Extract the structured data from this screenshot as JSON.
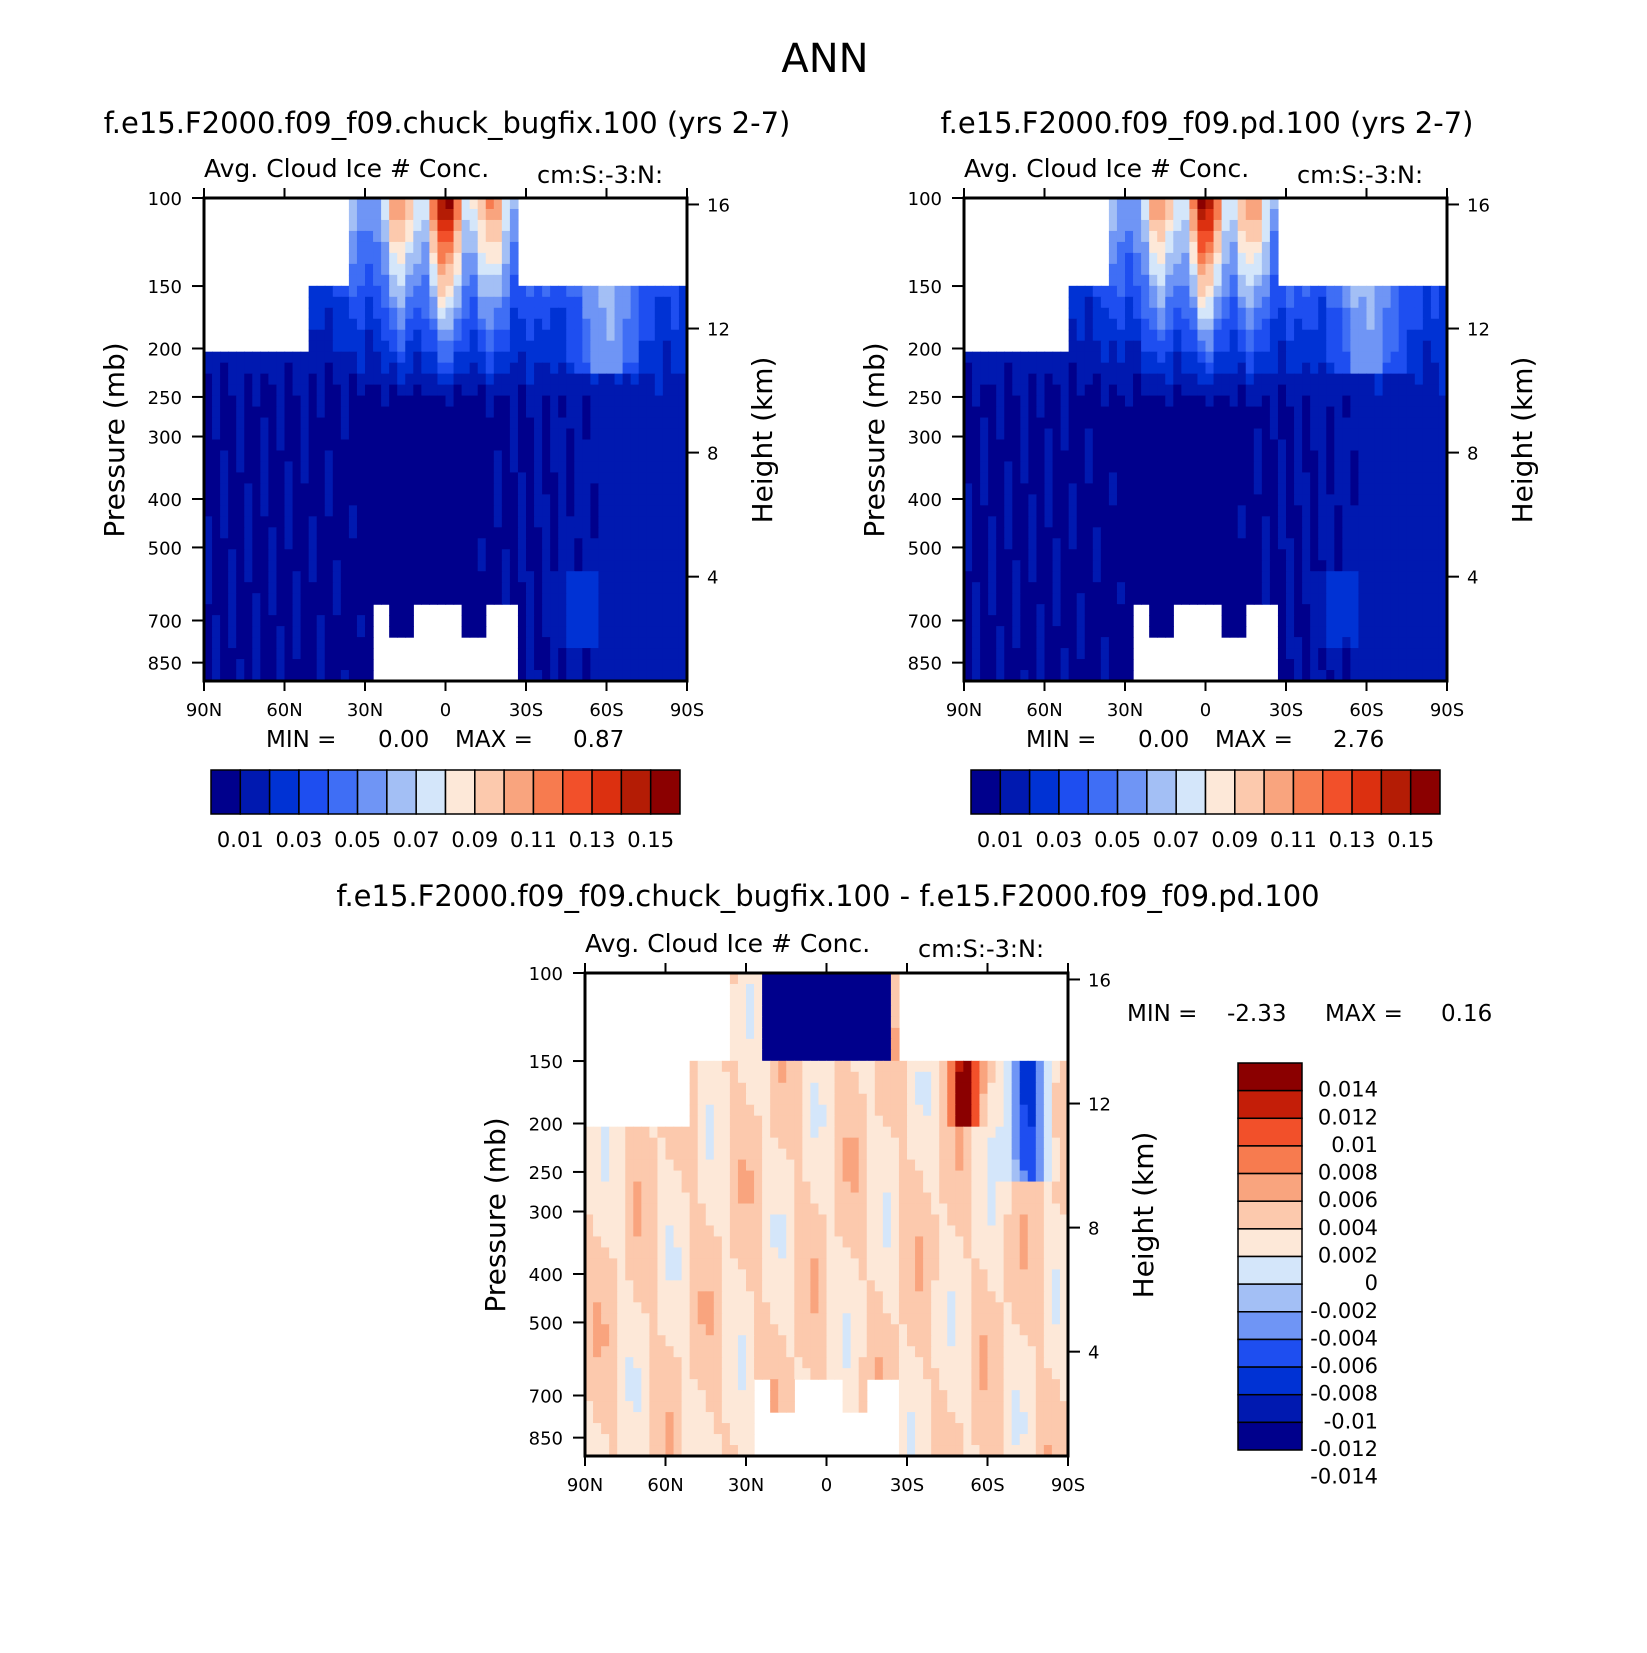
{
  "page_title": "ANN",
  "colors": {
    "seq": [
      "#00008c",
      "#0019b0",
      "#0032d4",
      "#1e4ef0",
      "#3f6ef5",
      "#6f95f5",
      "#a3bff5",
      "#d4e6fa",
      "#fde8d8",
      "#fcc9ad",
      "#f9a47e",
      "#f77b4f",
      "#f2502a",
      "#dc3010",
      "#b41c05",
      "#8b0000"
    ],
    "div": [
      "#00008c",
      "#0019b0",
      "#0032d4",
      "#1e4ef0",
      "#6f95f5",
      "#a3bff5",
      "#d4e6fa",
      "#fde8d8",
      "#fcc9ad",
      "#f9a47e",
      "#f77b4f",
      "#f2502a",
      "#c41e08",
      "#8b0000"
    ]
  },
  "chart_data": [
    {
      "type": "heatmap",
      "title": "f.e15.F2000.f09_f09.chuck_bugfix.100 (yrs 2-7)",
      "subtitle": "Avg. Cloud Ice # Conc.",
      "units_label": "cm:S:-3:N:",
      "x_ticks": [
        "90N",
        "60N",
        "30N",
        "0",
        "30S",
        "60S",
        "90S"
      ],
      "y_ticks": [
        "100",
        "150",
        "200",
        "250",
        "300",
        "400",
        "500",
        "700",
        "850"
      ],
      "y_right_ticks": [
        "16",
        "12",
        "8",
        "4"
      ],
      "ylabel": "Pressure (mb)",
      "ylabel_right": "Height (km)",
      "min_label": "MIN =",
      "min_value": "0.00",
      "max_label": "MAX =",
      "max_value": "0.87",
      "colorbar_labels": [
        "0.01",
        "0.03",
        "0.05",
        "0.07",
        "0.09",
        "0.11",
        "0.13",
        "0.15"
      ]
    },
    {
      "type": "heatmap",
      "title": "f.e15.F2000.f09_f09.pd.100 (yrs 2-7)",
      "subtitle": "Avg. Cloud Ice # Conc.",
      "units_label": "cm:S:-3:N:",
      "x_ticks": [
        "90N",
        "60N",
        "30N",
        "0",
        "30S",
        "60S",
        "90S"
      ],
      "y_ticks": [
        "100",
        "150",
        "200",
        "250",
        "300",
        "400",
        "500",
        "700",
        "850"
      ],
      "y_right_ticks": [
        "16",
        "12",
        "8",
        "4"
      ],
      "ylabel": "Pressure (mb)",
      "ylabel_right": "Height (km)",
      "min_label": "MIN =",
      "min_value": "0.00",
      "max_label": "MAX =",
      "max_value": "2.76",
      "colorbar_labels": [
        "0.01",
        "0.03",
        "0.05",
        "0.07",
        "0.09",
        "0.11",
        "0.13",
        "0.15"
      ]
    },
    {
      "type": "heatmap",
      "title": "f.e15.F2000.f09_f09.chuck_bugfix.100 - f.e15.F2000.f09_f09.pd.100",
      "subtitle": "Avg. Cloud Ice # Conc.",
      "units_label": "cm:S:-3:N:",
      "x_ticks": [
        "90N",
        "60N",
        "30N",
        "0",
        "30S",
        "60S",
        "90S"
      ],
      "y_ticks": [
        "100",
        "150",
        "200",
        "250",
        "300",
        "400",
        "500",
        "700",
        "850"
      ],
      "y_right_ticks": [
        "16",
        "12",
        "8",
        "4"
      ],
      "ylabel": "Pressure (mb)",
      "ylabel_right": "Height (km)",
      "min_label": "MIN =",
      "min_value": "-2.33",
      "max_label": "MAX =",
      "max_value": "0.16",
      "colorbar_labels": [
        "0.014",
        "0.012",
        "0.01",
        "0.008",
        "0.006",
        "0.004",
        "0.002",
        "0",
        "-0.002",
        "-0.004",
        "-0.006",
        "-0.008",
        "-0.01",
        "-0.012",
        "-0.014"
      ]
    }
  ]
}
